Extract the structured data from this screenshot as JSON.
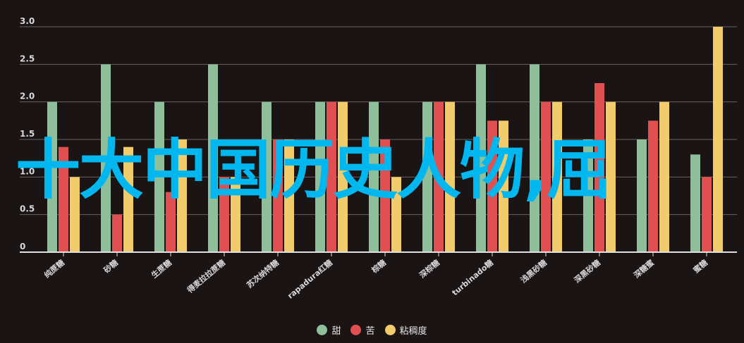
{
  "colors": {
    "sweet": "#8fbf9a",
    "bitter": "#e05050",
    "sticky": "#f2cc6a"
  },
  "overlay_text": "十大中国历史人物,屈",
  "chart_data": {
    "type": "bar",
    "categories": [
      "纯蔗糖",
      "砂糖",
      "生蔗糖",
      "得麦拉拉蔗糖",
      "苏次纳特糖",
      "rapadura红糖",
      "棕糖",
      "深棕糖",
      "turbinado糖",
      "浅黑砂糖",
      "深黑砂糖",
      "深糖蜜",
      "蜜糖"
    ],
    "series": [
      {
        "name": "甜",
        "values": [
          2.0,
          2.5,
          2.0,
          2.5,
          2.0,
          2.0,
          2.0,
          2.0,
          2.5,
          2.5,
          1.5,
          1.5,
          1.3
        ]
      },
      {
        "name": "苦",
        "values": [
          1.4,
          0.5,
          0.8,
          1.0,
          1.5,
          2.0,
          1.5,
          2.0,
          1.75,
          2.0,
          2.25,
          1.75,
          1.0
        ]
      },
      {
        "name": "粘稠度",
        "values": [
          1.0,
          1.4,
          1.5,
          1.0,
          1.5,
          2.0,
          1.0,
          2.0,
          1.75,
          2.0,
          2.0,
          2.0,
          3.0
        ]
      }
    ],
    "yticks": [
      "0",
      "0.5",
      "1.0",
      "1.5",
      "2.0",
      "2.5",
      "3.0"
    ],
    "ylim": [
      0,
      3.0
    ],
    "grid": true,
    "legend_position": "bottom"
  }
}
